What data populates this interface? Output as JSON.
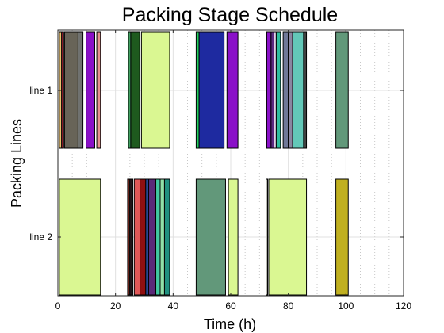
{
  "chart_data": {
    "type": "bar",
    "orientation": "horizontal-gantt",
    "title": "Packing Stage Schedule",
    "xlabel": "Time (h)",
    "ylabel": "Packing Lines",
    "xlim": [
      0,
      120
    ],
    "xticks": [
      0,
      20,
      40,
      60,
      80,
      100,
      120
    ],
    "grid": true,
    "legend": "none",
    "categories": [
      "line 1",
      "line 2"
    ],
    "series": [
      {
        "category": "line 1",
        "tasks": [
          {
            "start": 0.5,
            "end": 1.3,
            "color": "#e8c070"
          },
          {
            "start": 1.3,
            "end": 2.0,
            "color": "#b02030"
          },
          {
            "start": 2.3,
            "end": 7.0,
            "color": "#686458"
          },
          {
            "start": 7.0,
            "end": 8.7,
            "color": "#707270"
          },
          {
            "start": 9.8,
            "end": 12.8,
            "color": "#8a10c8"
          },
          {
            "start": 13.5,
            "end": 14.8,
            "color": "#e89090"
          },
          {
            "start": 24.5,
            "end": 25.3,
            "color": "#40a060"
          },
          {
            "start": 25.3,
            "end": 28.4,
            "color": "#1e5a1e"
          },
          {
            "start": 29.0,
            "end": 38.8,
            "color": "#daf792"
          },
          {
            "start": 48.0,
            "end": 49.0,
            "color": "#20d060"
          },
          {
            "start": 49.0,
            "end": 57.7,
            "color": "#1e2aa0"
          },
          {
            "start": 58.7,
            "end": 62.5,
            "color": "#8a10c8"
          },
          {
            "start": 72.5,
            "end": 74.0,
            "color": "#8a10c8"
          },
          {
            "start": 74.0,
            "end": 75.0,
            "color": "#5a2a80"
          },
          {
            "start": 75.0,
            "end": 75.8,
            "color": "#e0d0e8"
          },
          {
            "start": 75.8,
            "end": 77.3,
            "color": "#2ec0a0"
          },
          {
            "start": 78.2,
            "end": 80.0,
            "color": "#707898"
          },
          {
            "start": 80.0,
            "end": 81.5,
            "color": "#8a86a0"
          },
          {
            "start": 81.5,
            "end": 85.3,
            "color": "#63c8b8"
          },
          {
            "start": 85.3,
            "end": 86.3,
            "color": "#404040"
          },
          {
            "start": 96.5,
            "end": 100.8,
            "color": "#62987a"
          }
        ]
      },
      {
        "category": "line 2",
        "tasks": [
          {
            "start": 0.5,
            "end": 14.8,
            "color": "#daf792"
          },
          {
            "start": 24.2,
            "end": 24.8,
            "color": "#c04030"
          },
          {
            "start": 24.8,
            "end": 26.0,
            "color": "#201418"
          },
          {
            "start": 26.5,
            "end": 28.5,
            "color": "#e05858"
          },
          {
            "start": 28.5,
            "end": 30.5,
            "color": "#901010"
          },
          {
            "start": 30.5,
            "end": 31.5,
            "color": "#2a50a0"
          },
          {
            "start": 31.5,
            "end": 34.0,
            "color": "#5a2a78"
          },
          {
            "start": 34.0,
            "end": 35.5,
            "color": "#40c8a0"
          },
          {
            "start": 35.5,
            "end": 37.0,
            "color": "#90e0a8"
          },
          {
            "start": 37.0,
            "end": 38.8,
            "color": "#209080"
          },
          {
            "start": 48.0,
            "end": 58.2,
            "color": "#62987a"
          },
          {
            "start": 59.2,
            "end": 62.5,
            "color": "#daf792"
          },
          {
            "start": 72.3,
            "end": 72.8,
            "color": "#e0e0d8"
          },
          {
            "start": 73.2,
            "end": 86.3,
            "color": "#daf792"
          },
          {
            "start": 96.5,
            "end": 100.8,
            "color": "#c0b020"
          }
        ]
      }
    ],
    "colors": {
      "grid": "#e0e0e0",
      "dotted_grid": "#c8c8c8",
      "axis": "#262626",
      "bar_edge": "#000000"
    }
  }
}
